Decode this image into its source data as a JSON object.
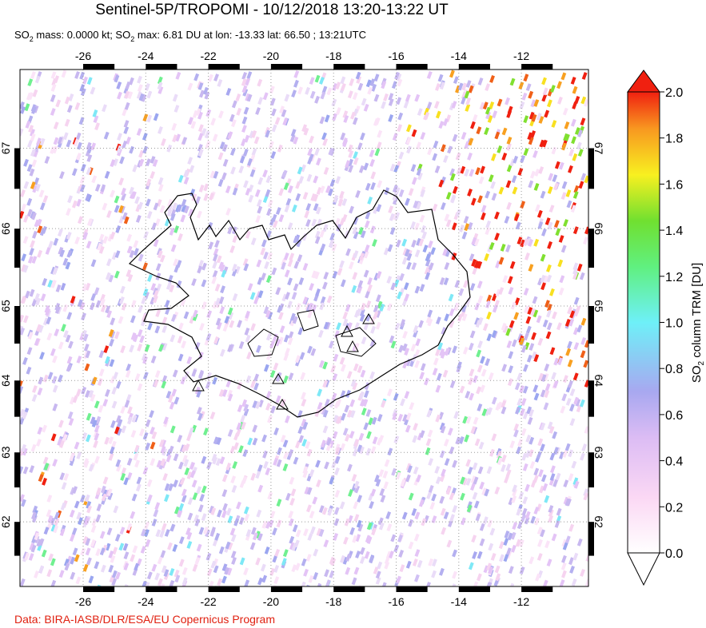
{
  "title": "Sentinel-5P/TROPOMI - 10/12/2018 13:20-13:22 UT",
  "subtitle": [
    "SO",
    "2",
    " mass: 0.0000 kt; SO",
    "2",
    " max: 6.81 DU at lon: -13.33 lat: 66.50 ; 13:21UTC"
  ],
  "map": {
    "lon_ticks": [
      -26,
      -24,
      -22,
      -20,
      -18,
      -16,
      -14,
      -12
    ],
    "lat_ticks": [
      67,
      66,
      65,
      64,
      63,
      62
    ]
  },
  "colorbar": {
    "label": [
      "SO",
      "2",
      " column TRM [DU]"
    ],
    "ticks": [
      {
        "value": 0,
        "label": "0.0"
      },
      {
        "value": 0.2,
        "label": "0.2"
      },
      {
        "value": 0.4,
        "label": "0.4"
      },
      {
        "value": 0.6,
        "label": "0.6"
      },
      {
        "value": 0.8,
        "label": "0.8"
      },
      {
        "value": 1,
        "label": "1.0"
      },
      {
        "value": 1.2,
        "label": "1.2"
      },
      {
        "value": 1.4,
        "label": "1.4"
      },
      {
        "value": 1.6,
        "label": "1.6"
      },
      {
        "value": 1.8,
        "label": "1.8"
      },
      {
        "value": 2,
        "label": "2.0"
      }
    ],
    "lim": [
      0,
      2
    ]
  },
  "credit": "Data: BIRA-IASB/DLR/ESA/EU Copernicus Program"
}
